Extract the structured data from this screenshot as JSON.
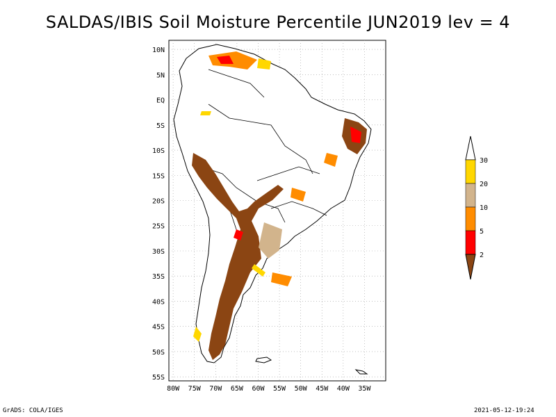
{
  "title": "SALDAS/IBIS Soil Moisture Percentile JUN2019 lev = 4",
  "lat_ticks": [
    "10N",
    "5N",
    "EQ",
    "5S",
    "10S",
    "15S",
    "20S",
    "25S",
    "30S",
    "35S",
    "40S",
    "45S",
    "50S",
    "55S"
  ],
  "lon_ticks": [
    "80W",
    "75W",
    "70W",
    "65W",
    "60W",
    "55W",
    "50W",
    "45W",
    "40W",
    "35W"
  ],
  "legend": {
    "labels": [
      "2",
      "5",
      "10",
      "20",
      "30"
    ],
    "colors": [
      "#8b4513",
      "#ff0000",
      "#ff8c00",
      "#d2b48c",
      "#ffd700",
      "#ffffff"
    ]
  },
  "footer": {
    "left": "GrADS: COLA/IGES",
    "right": "2021-05-12-19:24"
  },
  "colors": {
    "land_outline": "#000000",
    "grid": "#999999",
    "background": "#ffffff"
  }
}
